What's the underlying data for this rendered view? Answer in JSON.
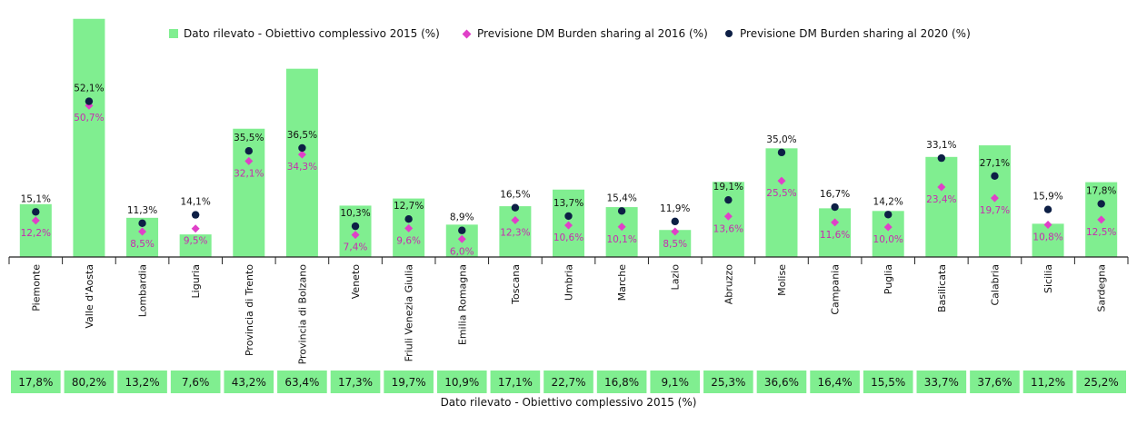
{
  "legend": {
    "bar_label": "Dato rilevato - Obiettivo complessivo 2015 (%)",
    "diamond_label": "Previsione DM Burden sharing al 2016 (%)",
    "dot_label": "Previsione DM Burden sharing al 2020 (%)"
  },
  "colors": {
    "bar": "#80EE90",
    "diamond": "#E040C8",
    "dot": "#0D1F45",
    "diamond_text": "#C72CB0",
    "axis": "#222222"
  },
  "chart_data": {
    "type": "bar",
    "categories": [
      "Piemonte",
      "Valle d'Aosta",
      "Lombardia",
      "Liguria",
      "Provincia di Trento",
      "Provincia di Bolzano",
      "Veneto",
      "Friuli Venezia Giulia",
      "Emilia Romagna",
      "Toscana",
      "Umbria",
      "Marche",
      "Lazio",
      "Abruzzo",
      "Molise",
      "Campania",
      "Puglia",
      "Basilicata",
      "Calabria",
      "Sicilia",
      "Sardegna"
    ],
    "series": [
      {
        "name": "Dato rilevato - Obiettivo complessivo 2015 (%)",
        "type": "bar",
        "values": [
          17.8,
          80.2,
          13.2,
          7.6,
          43.2,
          63.4,
          17.3,
          19.7,
          10.9,
          17.1,
          22.7,
          16.8,
          9.1,
          25.3,
          36.6,
          16.4,
          15.5,
          33.7,
          37.6,
          11.2,
          25.2
        ],
        "labels": [
          "17,8%",
          "80,2%",
          "13,2%",
          "7,6%",
          "43,2%",
          "63,4%",
          "17,3%",
          "19,7%",
          "10,9%",
          "17,1%",
          "22,7%",
          "16,8%",
          "9,1%",
          "25,3%",
          "36,6%",
          "16,4%",
          "15,5%",
          "33,7%",
          "37,6%",
          "11,2%",
          "25,2%"
        ]
      },
      {
        "name": "Previsione DM Burden sharing al 2016 (%)",
        "type": "scatter",
        "marker": "diamond",
        "values": [
          12.2,
          50.7,
          8.5,
          9.5,
          32.1,
          34.3,
          7.4,
          9.6,
          6.0,
          12.3,
          10.6,
          10.1,
          8.5,
          13.6,
          25.5,
          11.6,
          10.0,
          23.4,
          19.7,
          10.8,
          12.5
        ],
        "labels": [
          "12,2%",
          "50,7%",
          "8,5%",
          "9,5%",
          "32,1%",
          "34,3%",
          "7,4%",
          "9,6%",
          "6,0%",
          "12,3%",
          "10,6%",
          "10,1%",
          "8,5%",
          "13,6%",
          "25,5%",
          "11,6%",
          "10,0%",
          "23,4%",
          "19,7%",
          "10,8%",
          "12,5%"
        ]
      },
      {
        "name": "Previsione DM Burden sharing al 2020 (%)",
        "type": "scatter",
        "marker": "circle",
        "values": [
          15.1,
          52.1,
          11.3,
          14.1,
          35.5,
          36.5,
          10.3,
          12.7,
          8.9,
          16.5,
          13.7,
          15.4,
          11.9,
          19.1,
          35.0,
          16.7,
          14.2,
          33.1,
          27.1,
          15.9,
          17.8
        ],
        "labels": [
          "15,1%",
          "52,1%",
          "11,3%",
          "14,1%",
          "35,5%",
          "36,5%",
          "10,3%",
          "12,7%",
          "8,9%",
          "16,5%",
          "13,7%",
          "15,4%",
          "11,9%",
          "19,1%",
          "35,0%",
          "16,7%",
          "14,2%",
          "33,1%",
          "27,1%",
          "15,9%",
          "17,8%"
        ]
      }
    ],
    "bottom_table_title": "Dato rilevato - Obiettivo complessivo 2015 (%)",
    "grid": false,
    "legend_position": "top"
  }
}
